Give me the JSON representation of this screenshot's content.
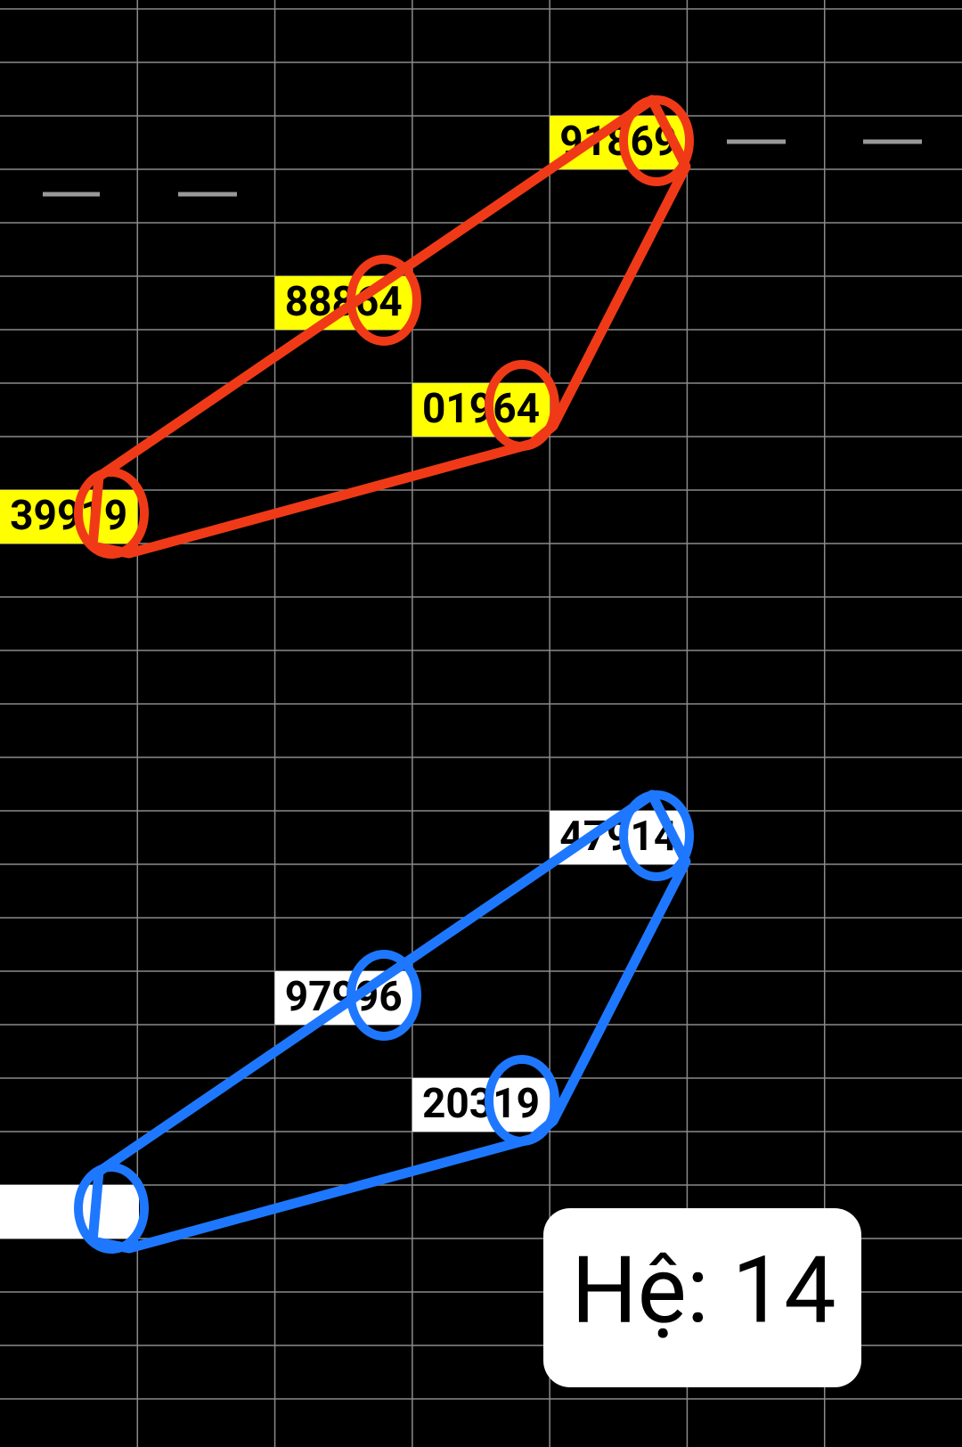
{
  "red_group": {
    "cells": [
      "91869",
      "88864",
      "01964",
      "39919"
    ]
  },
  "blue_group": {
    "cells": [
      "47914",
      "97996",
      "20319"
    ]
  },
  "badge": {
    "text": "Hệ: 14"
  }
}
